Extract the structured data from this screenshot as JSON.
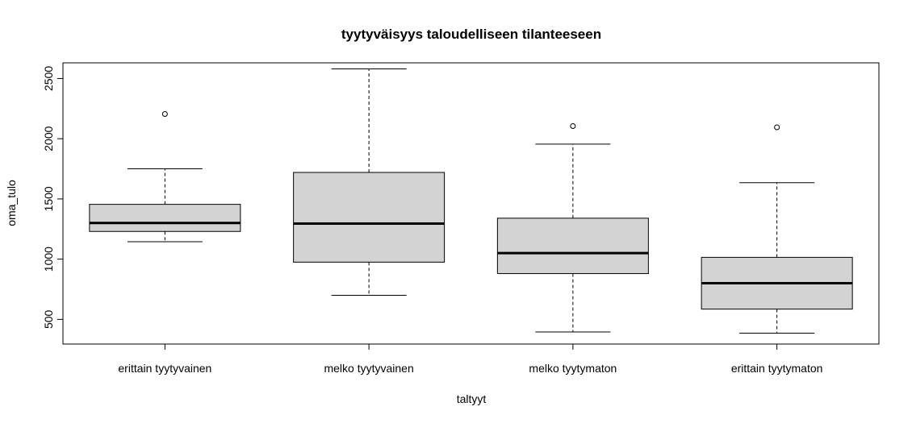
{
  "chart_data": {
    "type": "boxplot",
    "title": "tyytyväisyys taloudelliseen tilanteeseen",
    "xlabel": "taltyyt",
    "ylabel": "oma_tulo",
    "ylim": [
      295,
      2630
    ],
    "yticks": [
      500,
      1000,
      1500,
      2000,
      2500
    ],
    "ytick_labels": [
      "500",
      "1000",
      "1500",
      "2000",
      "2500"
    ],
    "box_color": "#d3d3d3",
    "categories": [
      "erittain tyytyvainen",
      "melko tyytyvainen",
      "melko tyytymaton",
      "erittain tyytymaton"
    ],
    "boxes": [
      {
        "whisker_low": 1145,
        "q1": 1230,
        "median": 1300,
        "q3": 1455,
        "whisker_high": 1750,
        "outliers": [
          2205
        ]
      },
      {
        "whisker_low": 700,
        "q1": 975,
        "median": 1295,
        "q3": 1720,
        "whisker_high": 2580,
        "outliers": []
      },
      {
        "whisker_low": 395,
        "q1": 880,
        "median": 1050,
        "q3": 1340,
        "whisker_high": 1955,
        "outliers": [
          2105
        ]
      },
      {
        "whisker_low": 385,
        "q1": 585,
        "median": 800,
        "q3": 1015,
        "whisker_high": 1635,
        "outliers": [
          2095
        ]
      }
    ]
  }
}
